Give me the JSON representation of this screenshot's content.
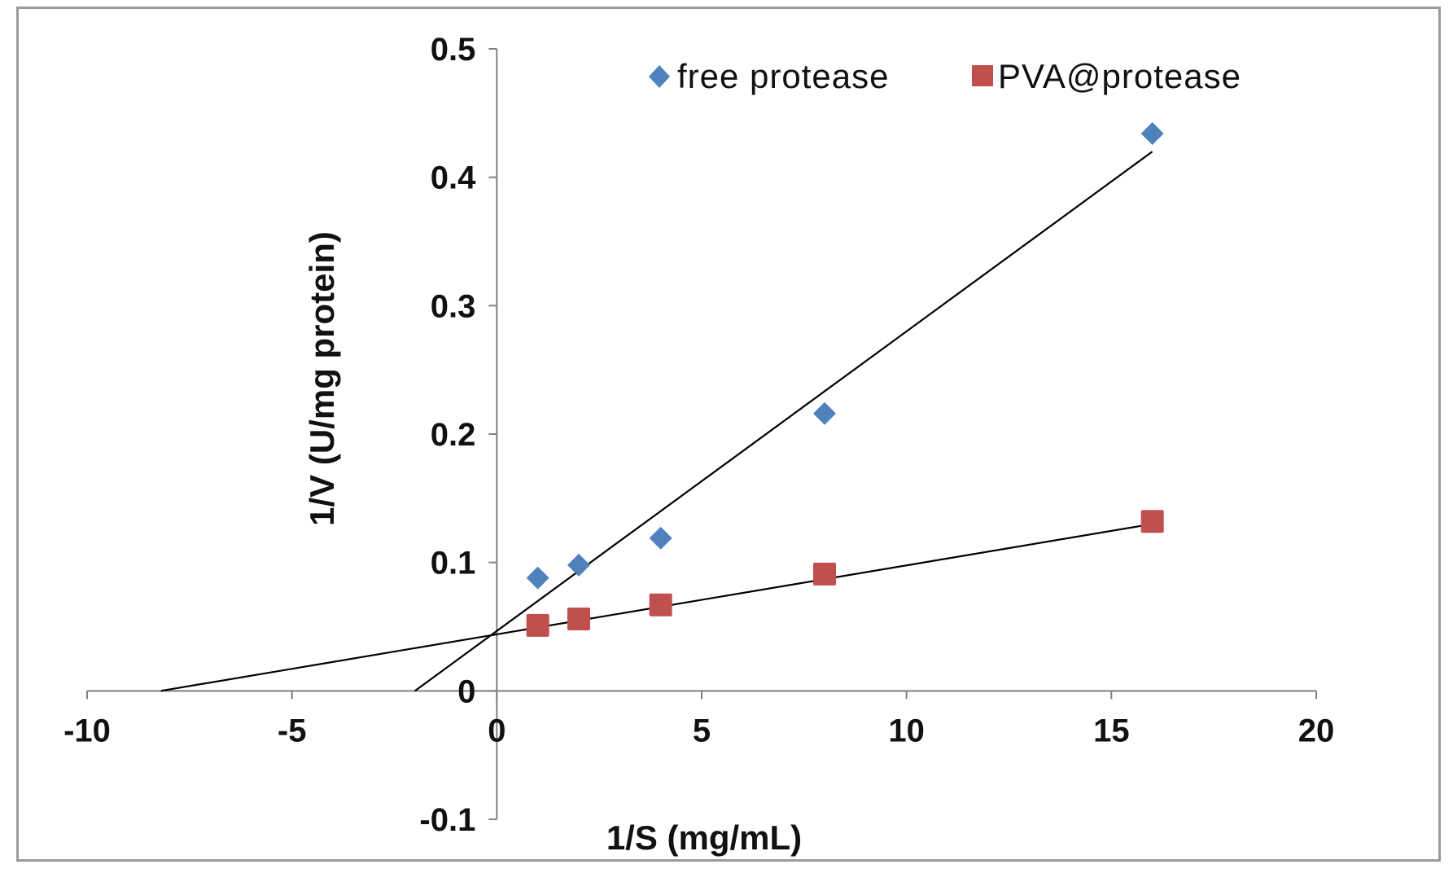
{
  "chart_data": {
    "type": "scatter",
    "title": "",
    "xlabel": "1/S (mg/mL)",
    "ylabel": "1/V (U/mg protein)",
    "xlim": [
      -10,
      20
    ],
    "ylim": [
      -0.1,
      0.5
    ],
    "x_ticks": [
      -10,
      -5,
      0,
      5,
      10,
      15,
      20
    ],
    "x_tick_labels": [
      "-10",
      "-5",
      "0",
      "5",
      "10",
      "15",
      "20"
    ],
    "y_ticks": [
      -0.1,
      0,
      0.1,
      0.2,
      0.3,
      0.4,
      0.5
    ],
    "y_tick_labels": [
      "-0.1",
      "0",
      "0.1",
      "0.2",
      "0.3",
      "0.4",
      "0.5"
    ],
    "grid": false,
    "legend_position": "top",
    "series": [
      {
        "name": "free protease",
        "marker": "diamond",
        "color": "#4F81BD",
        "x": [
          1,
          2,
          4,
          8,
          16
        ],
        "y": [
          0.088,
          0.098,
          0.119,
          0.216,
          0.434
        ],
        "trendline": {
          "x": [
            -2,
            16
          ],
          "y": [
            0,
            0.42
          ]
        }
      },
      {
        "name": "PVA@protease",
        "marker": "square",
        "color": "#C0504D",
        "x": [
          1,
          2,
          4,
          8,
          16
        ],
        "y": [
          0.051,
          0.056,
          0.067,
          0.091,
          0.132
        ],
        "trendline": {
          "x": [
            -8.2,
            16
          ],
          "y": [
            0,
            0.13
          ]
        }
      }
    ]
  }
}
